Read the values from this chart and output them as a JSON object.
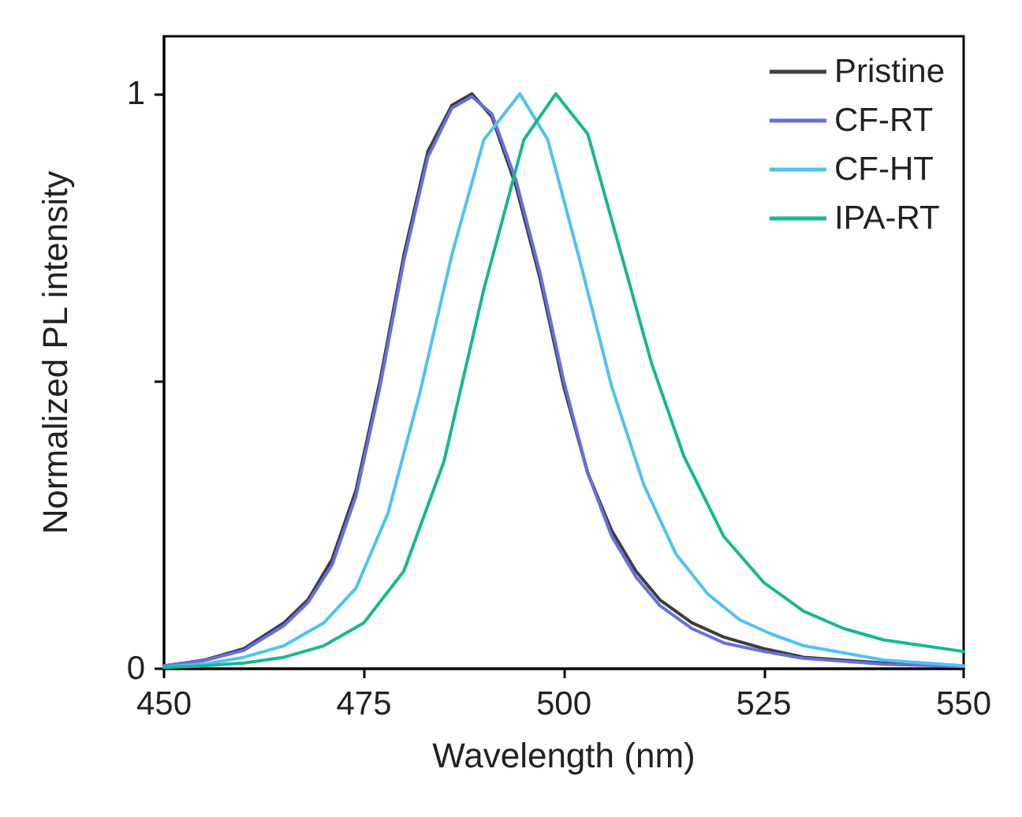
{
  "chart_data": {
    "type": "line",
    "xlabel": "Wavelength (nm)",
    "ylabel": "Normalized PL intensity",
    "xlim": [
      450,
      550
    ],
    "xticks": [
      450,
      475,
      500,
      525,
      550
    ],
    "ylim": [
      0,
      1.1
    ],
    "yticks": [
      0,
      {
        "value": 0.5,
        "label": null
      },
      1
    ],
    "grid": false,
    "legend": "top right",
    "marker": "none",
    "line_style": "solid",
    "series": [
      {
        "name": "Pristine",
        "color": "#3d3d3d",
        "x": [
          450,
          455,
          460,
          465,
          468,
          471,
          474,
          477,
          480,
          483,
          486,
          488.5,
          491,
          494,
          497,
          500,
          503,
          506,
          509,
          512,
          516,
          520,
          525,
          530,
          540,
          550
        ],
        "values": [
          0.005,
          0.015,
          0.035,
          0.08,
          0.12,
          0.19,
          0.31,
          0.5,
          0.72,
          0.9,
          0.98,
          1,
          0.96,
          0.84,
          0.68,
          0.49,
          0.34,
          0.24,
          0.17,
          0.12,
          0.08,
          0.055,
          0.035,
          0.02,
          0.01,
          0.005
        ]
      },
      {
        "name": "CF-RT",
        "color": "#6a6ee0",
        "x": [
          450,
          455,
          460,
          465,
          468,
          471,
          474,
          477,
          480,
          483,
          486,
          488.5,
          491,
          494,
          497,
          500,
          503,
          506,
          509,
          512,
          516,
          520,
          525,
          530,
          540,
          550
        ],
        "values": [
          0.005,
          0.014,
          0.032,
          0.075,
          0.115,
          0.18,
          0.3,
          0.49,
          0.71,
          0.89,
          0.975,
          0.995,
          0.965,
          0.85,
          0.69,
          0.5,
          0.34,
          0.23,
          0.16,
          0.11,
          0.07,
          0.045,
          0.03,
          0.018,
          0.008,
          0.004
        ]
      },
      {
        "name": "CF-HT",
        "color": "#4fc3f0",
        "x": [
          450,
          455,
          460,
          465,
          470,
          474,
          478,
          482,
          486,
          490,
          494.5,
          498,
          502,
          506,
          510,
          514,
          518,
          522,
          526,
          530,
          540,
          550
        ],
        "values": [
          0.003,
          0.008,
          0.02,
          0.04,
          0.08,
          0.14,
          0.27,
          0.48,
          0.72,
          0.92,
          1,
          0.92,
          0.71,
          0.49,
          0.32,
          0.2,
          0.13,
          0.085,
          0.06,
          0.04,
          0.015,
          0.005
        ]
      },
      {
        "name": "IPA-RT",
        "color": "#17b890",
        "x": [
          450,
          455,
          460,
          465,
          470,
          475,
          480,
          485,
          490,
          495,
          499,
          503,
          507,
          511,
          515,
          520,
          525,
          530,
          535,
          540,
          545,
          550
        ],
        "values": [
          0.002,
          0.005,
          0.01,
          0.02,
          0.04,
          0.08,
          0.17,
          0.36,
          0.66,
          0.92,
          1,
          0.93,
          0.73,
          0.53,
          0.37,
          0.23,
          0.15,
          0.1,
          0.07,
          0.05,
          0.04,
          0.03
        ]
      }
    ]
  }
}
